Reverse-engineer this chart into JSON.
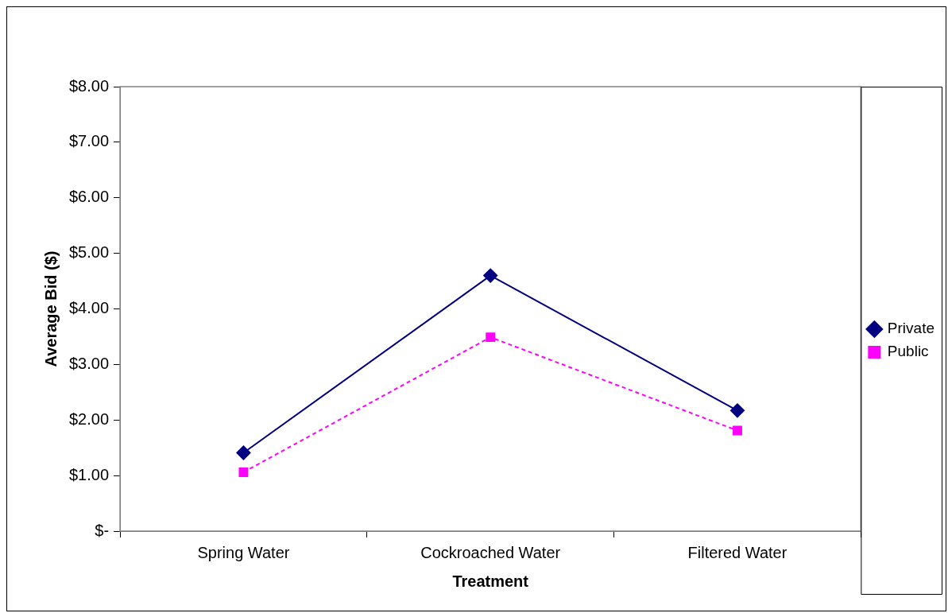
{
  "chart_data": {
    "type": "line",
    "xlabel": "Treatment",
    "ylabel": "Average Bid ($)",
    "categories": [
      "Spring Water",
      "Cockroached Water",
      "Filtered Water"
    ],
    "series": [
      {
        "name": "Private",
        "color": "#000080",
        "values": [
          1.41,
          4.6,
          2.17
        ],
        "marker": "diamond",
        "line_style": "solid"
      },
      {
        "name": "Public",
        "color": "#ff00ff",
        "values": [
          1.06,
          3.49,
          1.81
        ],
        "marker": "square",
        "line_style": "dashed"
      }
    ],
    "ylim": [
      0,
      8
    ],
    "yticks": [
      {
        "value": 0,
        "label": "$-"
      },
      {
        "value": 1,
        "label": "$1.00"
      },
      {
        "value": 2,
        "label": "$2.00"
      },
      {
        "value": 3,
        "label": "$3.00"
      },
      {
        "value": 4,
        "label": "$4.00"
      },
      {
        "value": 5,
        "label": "$5.00"
      },
      {
        "value": 6,
        "label": "$6.00"
      },
      {
        "value": 7,
        "label": "$7.00"
      },
      {
        "value": 8,
        "label": "$8.00"
      }
    ],
    "grid": false,
    "legend": "right"
  }
}
